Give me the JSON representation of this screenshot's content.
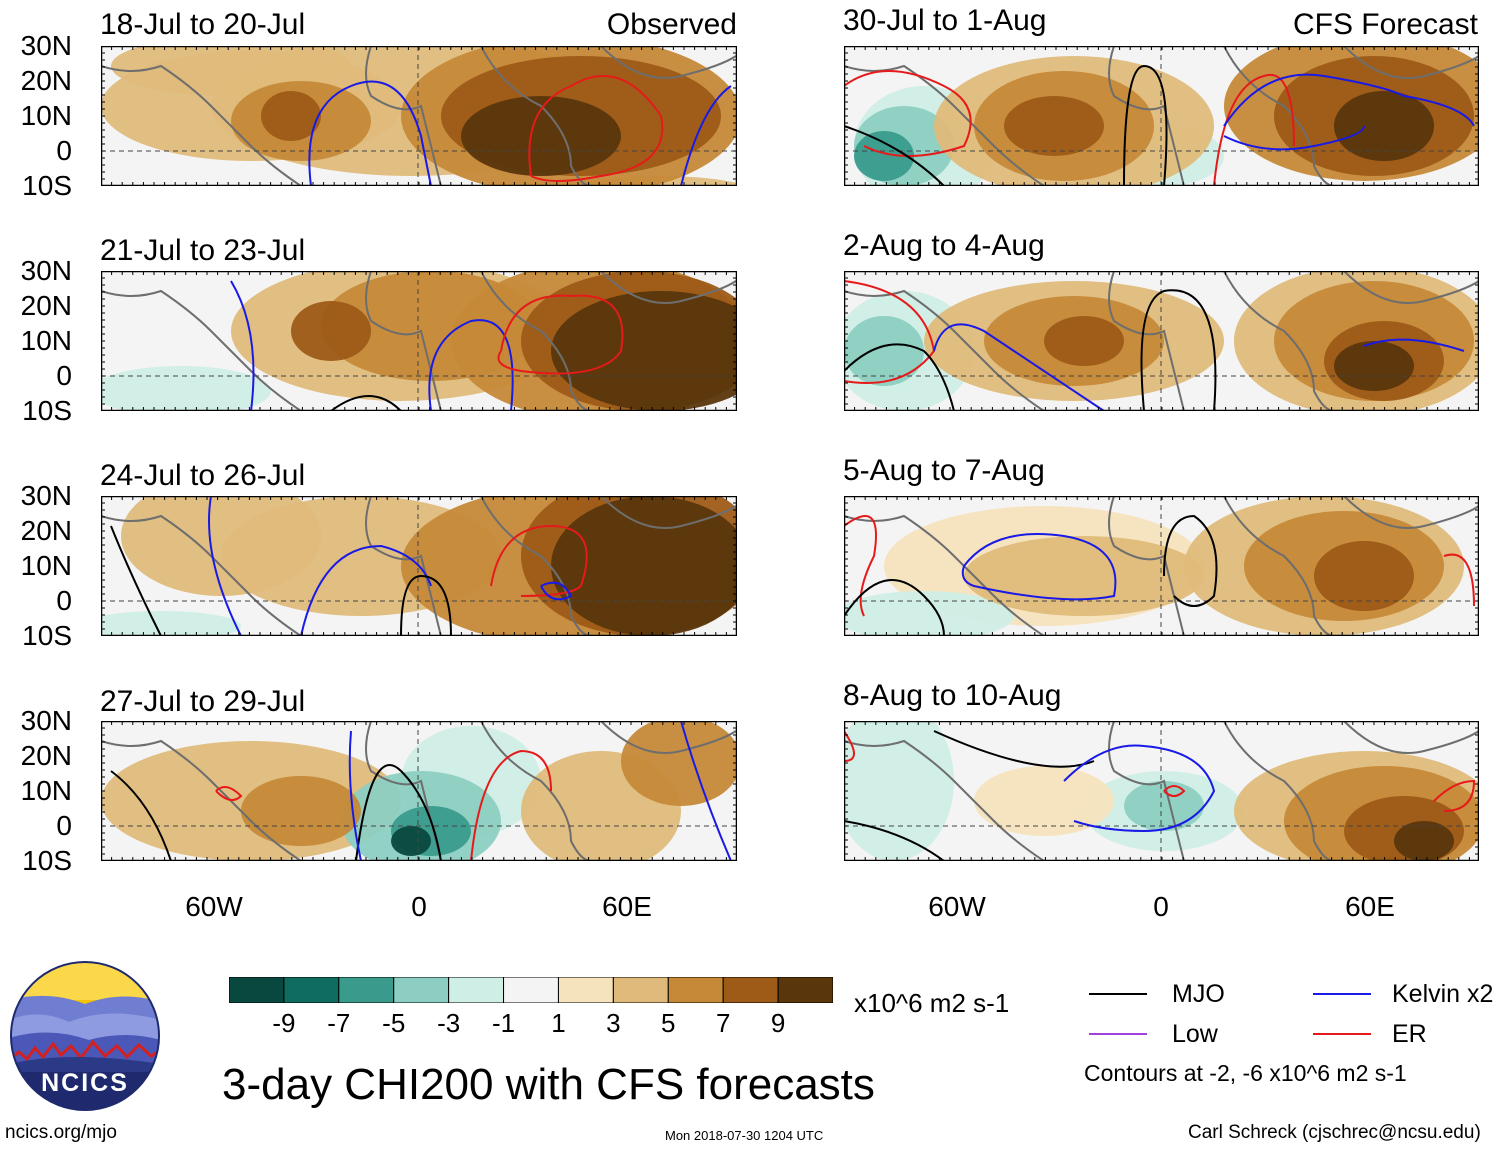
{
  "colors": {
    "mjo": "#000000",
    "kelvin": "#1a1ae6",
    "low": "#a040e0",
    "er": "#e61a1a",
    "bins": [
      "#08483f",
      "#0e6d60",
      "#3a9b8d",
      "#8ccfc2",
      "#cfeee6",
      "#f4f4f4",
      "#f5e3be",
      "#dfba7a",
      "#c58938",
      "#9d5b17",
      "#5a360c"
    ]
  },
  "panels": [
    {
      "title": "18-Jul to 20-Jul",
      "tag": "Observed"
    },
    {
      "title": "21-Jul to 23-Jul",
      "tag": ""
    },
    {
      "title": "24-Jul to 26-Jul",
      "tag": ""
    },
    {
      "title": "27-Jul to 29-Jul",
      "tag": ""
    },
    {
      "title": "30-Jul to 1-Aug",
      "tag": "CFS Forecast"
    },
    {
      "title": "2-Aug to 4-Aug",
      "tag": ""
    },
    {
      "title": "5-Aug to 7-Aug",
      "tag": ""
    },
    {
      "title": "8-Aug to 10-Aug",
      "tag": ""
    }
  ],
  "lat_labels": [
    "30N",
    "20N",
    "10N",
    "0",
    "10S"
  ],
  "lon_labels": [
    "60W",
    "0",
    "60E"
  ],
  "colorbar": {
    "ticks": [
      "-9",
      "-7",
      "-5",
      "-3",
      "-1",
      "1",
      "3",
      "5",
      "7",
      "9"
    ],
    "units": "x10^6 m2 s-1"
  },
  "legend": {
    "mjo": "MJO",
    "kelvin": "Kelvin x2",
    "low": "Low",
    "er": "ER",
    "contour_note": "Contours at -2, -6 x10^6 m2 s-1"
  },
  "logo_text": "NCICS",
  "main_title": "3-day CHI200 with CFS forecasts",
  "footer": {
    "site": "ncics.org/mjo",
    "timestamp": "Mon 2018-07-30 1204 UTC",
    "author": "Carl Schreck (cjschrec@ncsu.edu)"
  }
}
